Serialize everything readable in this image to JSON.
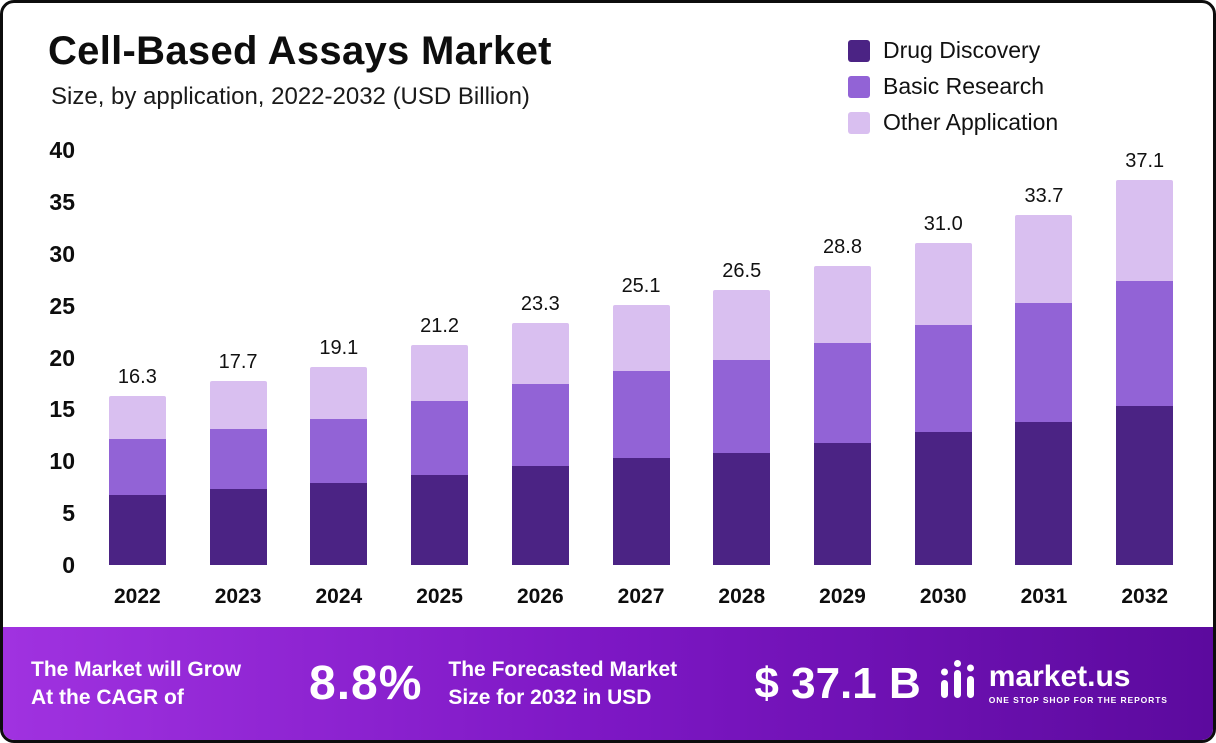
{
  "header": {
    "title": "Cell-Based Assays Market",
    "subtitle": "Size, by application, 2022-2032 (USD Billion)"
  },
  "legend": [
    {
      "label": "Drug Discovery",
      "color": "#4b2384"
    },
    {
      "label": "Basic Research",
      "color": "#9263d6"
    },
    {
      "label": "Other Application",
      "color": "#d9bff0"
    }
  ],
  "chart_data": {
    "type": "bar",
    "stacked": true,
    "title": "Cell-Based Assays Market",
    "subtitle": "Size, by application, 2022-2032 (USD Billion)",
    "categories": [
      "2022",
      "2023",
      "2024",
      "2025",
      "2026",
      "2027",
      "2028",
      "2029",
      "2030",
      "2031",
      "2032"
    ],
    "series": [
      {
        "name": "Drug Discovery",
        "color": "#4b2384",
        "values": [
          6.8,
          7.3,
          7.9,
          8.7,
          9.5,
          10.3,
          10.8,
          11.8,
          12.8,
          13.8,
          15.3
        ]
      },
      {
        "name": "Basic Research",
        "color": "#9263d6",
        "values": [
          5.4,
          5.8,
          6.2,
          7.1,
          7.9,
          8.4,
          9.0,
          9.6,
          10.3,
          11.5,
          12.1
        ]
      },
      {
        "name": "Other Application",
        "color": "#d9bff0",
        "values": [
          4.1,
          4.6,
          5.0,
          5.4,
          5.9,
          6.4,
          6.7,
          7.4,
          7.9,
          8.4,
          9.7
        ]
      }
    ],
    "totals": [
      16.3,
      17.7,
      19.1,
      21.2,
      23.3,
      25.1,
      26.5,
      28.8,
      31.0,
      33.7,
      37.1
    ],
    "ylim": [
      0,
      40
    ],
    "yticks": [
      0,
      5,
      10,
      15,
      20,
      25,
      30,
      35,
      40
    ],
    "xlabel": "",
    "ylabel": "",
    "grid": false,
    "legend_position": "top-right"
  },
  "footer": {
    "left_line1": "The Market will Grow",
    "left_line2": "At the CAGR of",
    "cagr": "8.8%",
    "mid_line1": "The Forecasted Market",
    "mid_line2": "Size for 2032 in USD",
    "value": "$ 37.1 B",
    "brand": "market.us",
    "tagline": "ONE STOP SHOP FOR THE REPORTS"
  }
}
